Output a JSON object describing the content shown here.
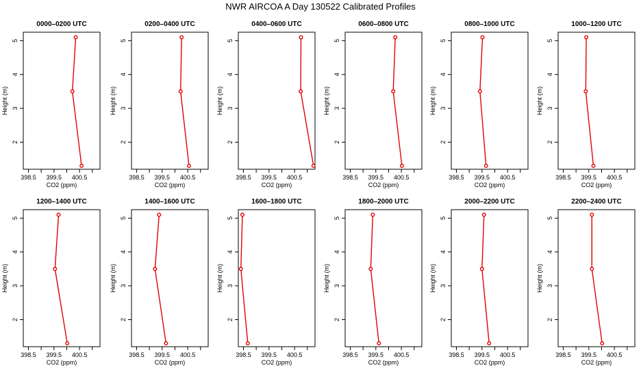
{
  "title": "NWR AIRCOA A  Day 130522  Calibrated Profiles",
  "colors": {
    "line": "#e00000",
    "axis": "#000000",
    "background": "#ffffff"
  },
  "chart_data": {
    "type": "line",
    "xlabel": "CO2 (ppm)",
    "ylabel": "Height (m)",
    "xlim": [
      398.3,
      401.3
    ],
    "ylim": [
      1.2,
      5.25
    ],
    "xticks": [
      "398.5",
      "399.5",
      "400.5"
    ],
    "xtick_values": [
      398.5,
      399.5,
      400.5
    ],
    "yticks": [
      "2",
      "3",
      "4",
      "5"
    ],
    "ytick_values": [
      2,
      3,
      4,
      5
    ],
    "heights": [
      1.3,
      3.5,
      5.1
    ],
    "panels": [
      {
        "title": "0000–0200 UTC",
        "values": [
          400.58,
          400.22,
          400.35
        ]
      },
      {
        "title": "0200–0400 UTC",
        "values": [
          400.55,
          400.22,
          400.26
        ]
      },
      {
        "title": "0400–0600 UTC",
        "values": [
          401.24,
          400.74,
          400.75
        ]
      },
      {
        "title": "0600–0800 UTC",
        "values": [
          400.52,
          400.18,
          400.26
        ]
      },
      {
        "title": "0800–1000 UTC",
        "values": [
          399.66,
          399.42,
          399.52
        ]
      },
      {
        "title": "1000–1200 UTC",
        "values": [
          399.68,
          399.38,
          399.4
        ]
      },
      {
        "title": "1200–1400 UTC",
        "values": [
          400.02,
          399.54,
          399.68
        ]
      },
      {
        "title": "1400–1600 UTC",
        "values": [
          399.65,
          399.22,
          399.38
        ]
      },
      {
        "title": "1600–1800 UTC",
        "values": [
          398.67,
          398.4,
          398.46
        ]
      },
      {
        "title": "1800–2000 UTC",
        "values": [
          399.62,
          399.3,
          399.38
        ]
      },
      {
        "title": "2000–2200 UTC",
        "values": [
          399.78,
          399.5,
          399.58
        ]
      },
      {
        "title": "2200–2400 UTC",
        "values": [
          400.02,
          399.62,
          399.62
        ]
      }
    ]
  }
}
